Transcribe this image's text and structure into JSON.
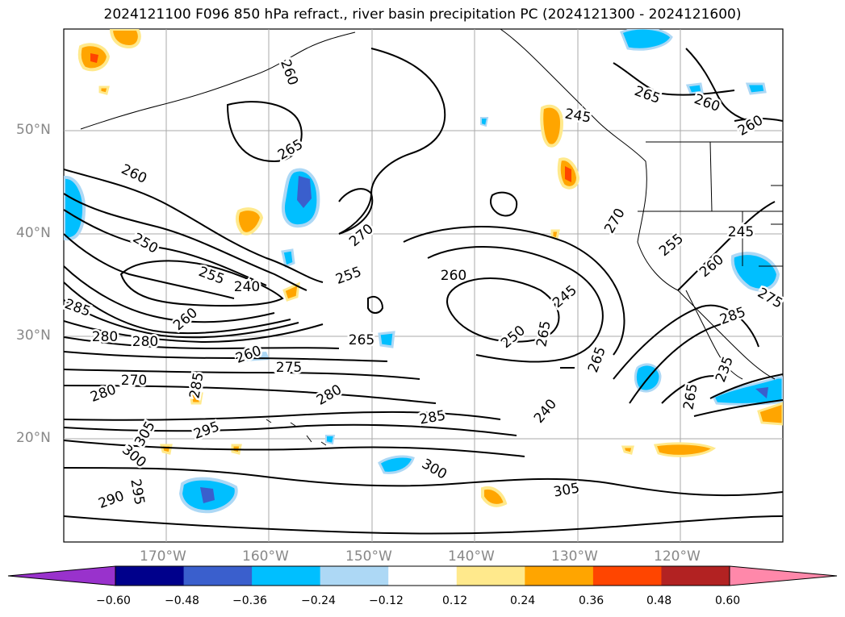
{
  "title": "2024121100 F096 850 hPa refract., river basin precipitation PC (2024121300 - 2024121600)",
  "lat_labels": [
    "50°N",
    "40°N",
    "30°N",
    "20°N"
  ],
  "lon_labels": [
    "170°W",
    "160°W",
    "150°W",
    "140°W",
    "130°W",
    "120°W"
  ],
  "contour_labels": [
    {
      "text": "260",
      "angle": 70
    },
    {
      "text": "265",
      "angle": -30
    },
    {
      "text": "265",
      "angle": 20
    },
    {
      "text": "260",
      "angle": 20
    },
    {
      "text": "260",
      "angle": -30
    },
    {
      "text": "260",
      "angle": 25
    },
    {
      "text": "245",
      "angle": 10
    },
    {
      "text": "250",
      "angle": 30
    },
    {
      "text": "255",
      "angle": 20
    },
    {
      "text": "240",
      "angle": 0
    },
    {
      "text": "260",
      "angle": -40
    },
    {
      "text": "270",
      "angle": -40
    },
    {
      "text": "255",
      "angle": -20
    },
    {
      "text": "260",
      "angle": 0
    },
    {
      "text": "245",
      "angle": -40
    },
    {
      "text": "250",
      "angle": -40
    },
    {
      "text": "265",
      "angle": -80
    },
    {
      "text": "270",
      "angle": -60
    },
    {
      "text": "255",
      "angle": -40
    },
    {
      "text": "260",
      "angle": -40
    },
    {
      "text": "245",
      "angle": 0
    },
    {
      "text": "275",
      "angle": 30
    },
    {
      "text": "285",
      "angle": 20
    },
    {
      "text": "280",
      "angle": 0
    },
    {
      "text": "280",
      "angle": 0
    },
    {
      "text": "265",
      "angle": 0
    },
    {
      "text": "260",
      "angle": -20
    },
    {
      "text": "275",
      "angle": 0
    },
    {
      "text": "270",
      "angle": 0
    },
    {
      "text": "285",
      "angle": -80
    },
    {
      "text": "280",
      "angle": -20
    },
    {
      "text": "280",
      "angle": -30
    },
    {
      "text": "265",
      "angle": -70
    },
    {
      "text": "240",
      "angle": -50
    },
    {
      "text": "235",
      "angle": -70
    },
    {
      "text": "265",
      "angle": -80
    },
    {
      "text": "285",
      "angle": -20
    },
    {
      "text": "285",
      "angle": -10
    },
    {
      "text": "295",
      "angle": -20
    },
    {
      "text": "305",
      "angle": -60
    },
    {
      "text": "300",
      "angle": 40
    },
    {
      "text": "295",
      "angle": 80
    },
    {
      "text": "290",
      "angle": -20
    },
    {
      "text": "300",
      "angle": 30
    },
    {
      "text": "305",
      "angle": -10
    }
  ],
  "colorbar": {
    "colors": [
      "#9932cc",
      "#00008b",
      "#3a5fcd",
      "#00bfff",
      "#add8f5",
      "#ffffff",
      "#ffe98c",
      "#ffa500",
      "#ff4500",
      "#b22222",
      "#ff88aa"
    ],
    "ticks": [
      "−0.60",
      "−0.48",
      "−0.36",
      "−0.24",
      "−0.12",
      "0.12",
      "0.24",
      "0.36",
      "0.48",
      "0.60"
    ]
  }
}
